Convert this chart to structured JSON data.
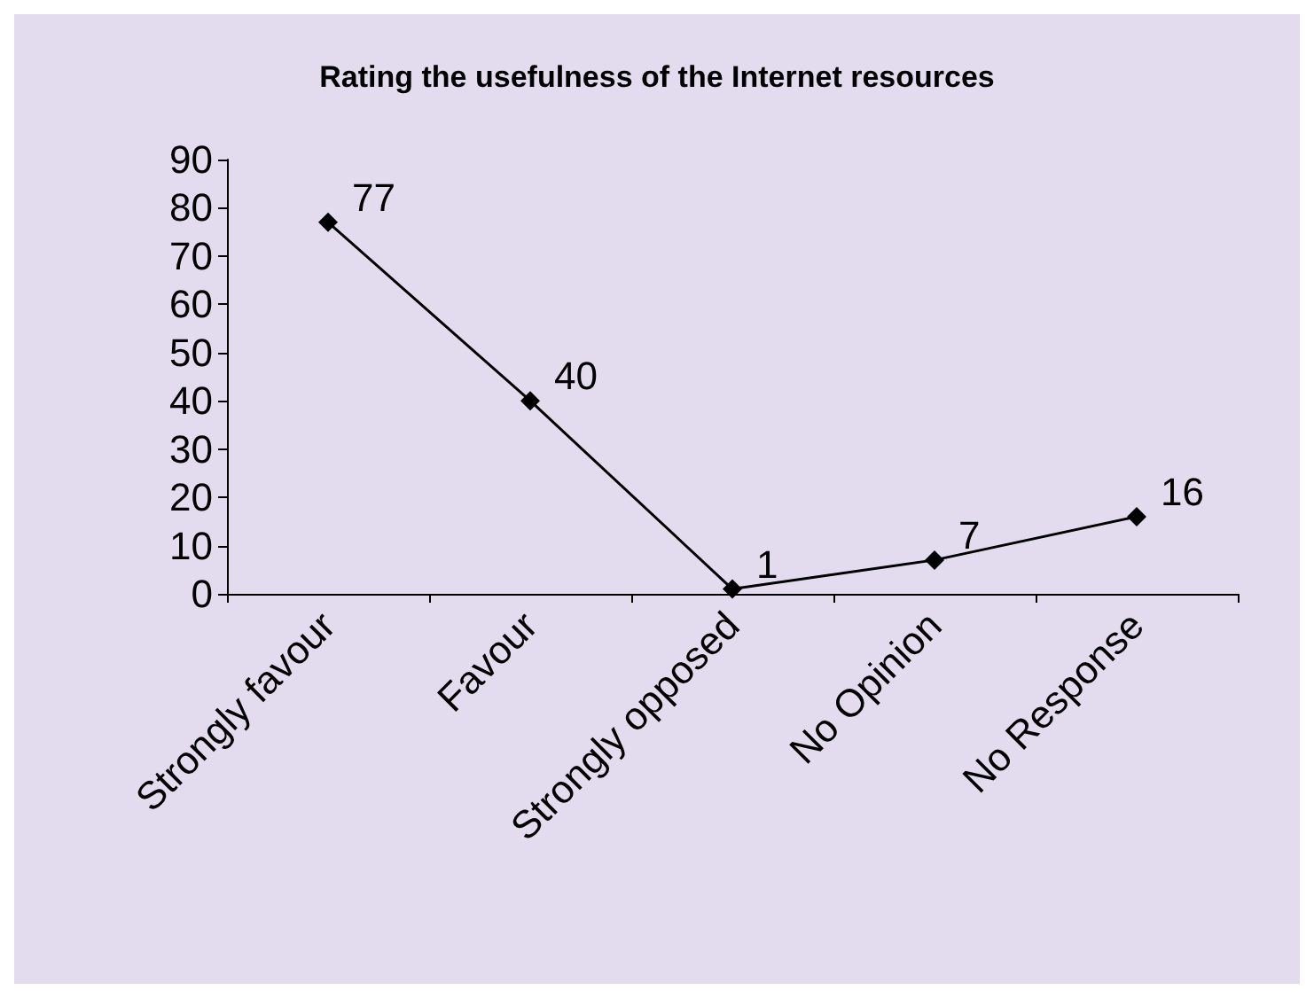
{
  "chart_data": {
    "type": "line",
    "title": "Rating the usefulness of the Internet resources",
    "categories": [
      "Strongly favour",
      "Favour",
      "Strongly opposed",
      "No Opinion",
      "No Response"
    ],
    "series": [
      {
        "color": "#000000",
        "values": [
          77,
          40,
          1,
          7,
          16
        ]
      }
    ],
    "ylim": [
      0,
      90
    ],
    "yticks": [
      0,
      10,
      20,
      30,
      40,
      50,
      60,
      70,
      80,
      90
    ],
    "grid": false,
    "marker": "diamond",
    "line_style": "solid",
    "data_labels": true
  }
}
